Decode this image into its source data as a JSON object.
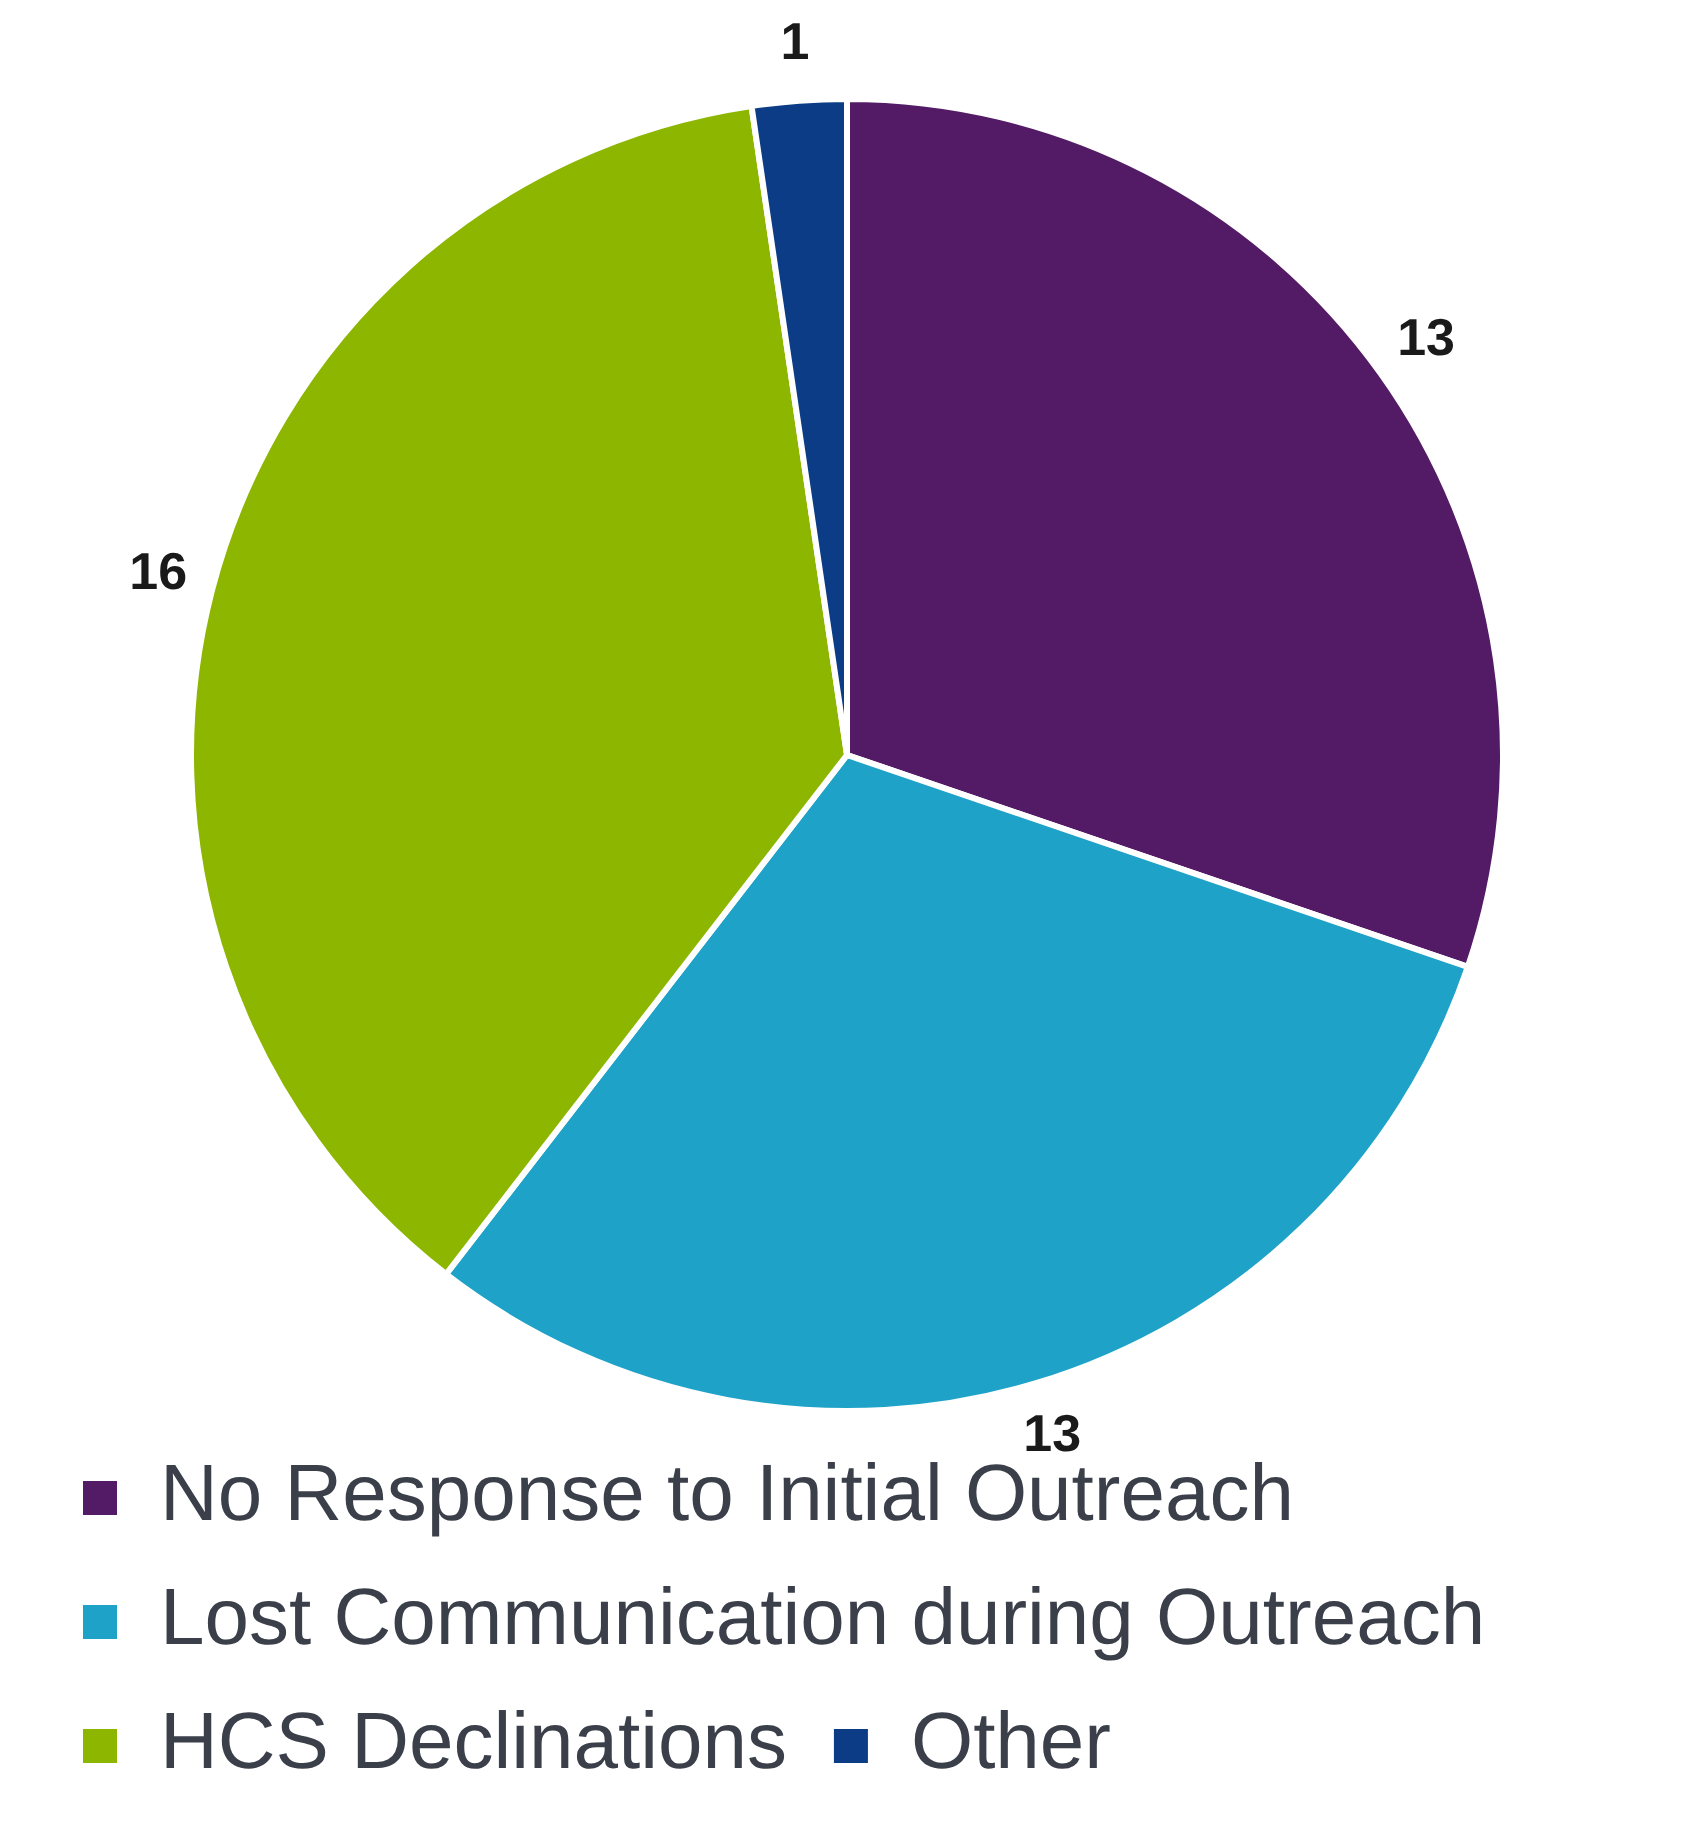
{
  "chart_data": {
    "type": "pie",
    "categories": [
      "No Response to Initial Outreach",
      "Lost Communication during Outreach",
      "HCS Declinations",
      "Other"
    ],
    "values": [
      13,
      13,
      16,
      1
    ],
    "colors": [
      "#531b66",
      "#1fa2c7",
      "#8db600",
      "#0b3c85"
    ],
    "data_labels": true,
    "legend": "bottom"
  }
}
